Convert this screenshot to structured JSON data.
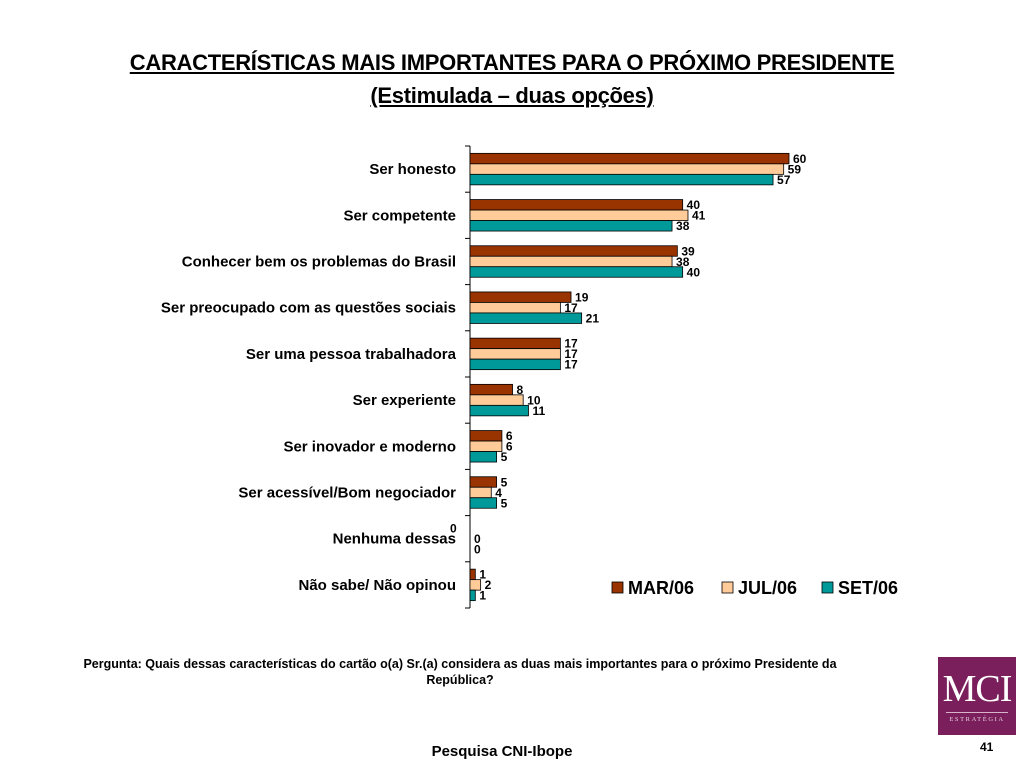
{
  "slide": {
    "title_line1": "CARACTERÍSTICAS MAIS IMPORTANTES PARA O PRÓXIMO PRESIDENTE",
    "title_line2": "(Estimulada – duas opções)",
    "question": "Pergunta: Quais dessas características do cartão o(a) Sr.(a) considera as duas mais importantes para o próximo Presidente da República?",
    "source": "Pesquisa CNI-Ibope",
    "page_number": "41",
    "logo": {
      "main": "MCI",
      "sub": "ESTRATÉGIA",
      "color": "#7a1f5c"
    }
  },
  "chart_data": {
    "type": "bar",
    "orientation": "horizontal",
    "title": "CARACTERÍSTICAS MAIS IMPORTANTES PARA O PRÓXIMO PRESIDENTE (Estimulada – duas opções)",
    "xlabel": "",
    "ylabel": "",
    "xlim": [
      0,
      60
    ],
    "grid": false,
    "legend_position": "bottom-right",
    "categories": [
      "Ser honesto",
      "Ser competente",
      "Conhecer bem os problemas do Brasil",
      "Ser preocupado com as questões sociais",
      "Ser uma pessoa trabalhadora",
      "Ser experiente",
      "Ser inovador e moderno",
      "Ser acessível/Bom negociador",
      "Nenhuma dessas",
      "Não sabe/ Não opinou"
    ],
    "series": [
      {
        "name": "MAR/06",
        "color": "#993300",
        "values": [
          60,
          40,
          39,
          19,
          17,
          8,
          6,
          5,
          0,
          1
        ]
      },
      {
        "name": "JUL/06",
        "color": "#ffcc99",
        "values": [
          59,
          41,
          38,
          17,
          17,
          10,
          6,
          4,
          0,
          2
        ]
      },
      {
        "name": "SET/06",
        "color": "#009999",
        "values": [
          57,
          38,
          40,
          21,
          17,
          11,
          5,
          5,
          0,
          1
        ]
      }
    ],
    "data_labels": true
  }
}
